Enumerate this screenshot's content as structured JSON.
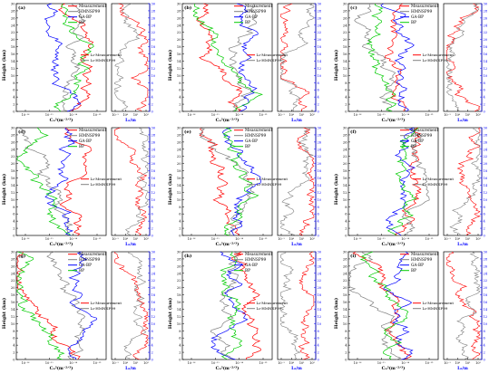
{
  "colors": {
    "measurement": "#ff0000",
    "hmnsp99": "#808080",
    "gabp": "#0000ff",
    "bp": "#00cc00",
    "right_axis": "#0000ff"
  },
  "legend_top": [
    "Measurement",
    "HMNSP99",
    "GA-BP",
    "BP"
  ],
  "legend_lo": [
    "L₀-Measurement",
    "L₀-HMNSP99"
  ],
  "labels": {
    "ylabel": "Height (km)",
    "xlabel_cn": "Cₙ²(m⁻²ᐟ³)",
    "xlabel_lo": "L₀/m"
  },
  "chart_data": {
    "type": "line",
    "y_range": [
      0,
      30
    ],
    "y_ticks": [
      0,
      2,
      4,
      6,
      8,
      10,
      12,
      14,
      16,
      18,
      20,
      22,
      24,
      26,
      28,
      30
    ],
    "x_left_ticks": [
      "10⁻¹⁶",
      "10⁻¹⁵",
      "10⁻¹⁴",
      "10⁻¹³"
    ],
    "x_right_ticks": [
      "10⁻¹",
      "10⁰",
      "10¹",
      "10²"
    ],
    "panels": [
      {
        "label": "(a)",
        "cn2_series": [
          "Measurement",
          "HMNSP99",
          "GA-BP",
          "BP"
        ],
        "l0_series": [
          "L₀-Measurement",
          "L₀-HMNSP99"
        ]
      },
      {
        "label": "(b)",
        "cn2_series": [
          "Measurement",
          "HMNSP99",
          "GA-BP",
          "BP"
        ],
        "l0_series": [
          "L₀-Measurement",
          "L₀-HMNSP99"
        ]
      },
      {
        "label": "(c)",
        "cn2_series": [
          "Measurement",
          "HMNSP99",
          "GA-BP",
          "BP"
        ],
        "l0_series": [
          "L₀-Measurement",
          "L₀-HMNSP99"
        ]
      },
      {
        "label": "(d)",
        "cn2_series": [
          "Measurement",
          "HMNSP99",
          "GA-BP",
          "BP"
        ],
        "l0_series": [
          "L₀-Measurement",
          "L₀-HMNSP99"
        ]
      },
      {
        "label": "(e)",
        "cn2_series": [
          "Measurement",
          "HMNSP99",
          "GA-BP",
          "BP"
        ],
        "l0_series": [
          "L₀-Measurement",
          "L₀-HMNSP99"
        ]
      },
      {
        "label": "(f)",
        "cn2_series": [
          "Measurement",
          "HMNSP99",
          "GA-BP",
          "BP"
        ],
        "l0_series": [
          "L₀-Measurement",
          "L₀-HMNSP99"
        ]
      },
      {
        "label": "(g)",
        "cn2_series": [
          "Measurement",
          "HMNSP99",
          "GA-BP",
          "BP"
        ],
        "l0_series": [
          "L₀-Measurement",
          "L₀-HMNSP99"
        ]
      },
      {
        "label": "(h)",
        "cn2_series": [
          "Measurement",
          "HMNSP99",
          "GA-BP",
          "BP"
        ],
        "l0_series": [
          "L₀-Measurement",
          "L₀-HMNSP99"
        ]
      },
      {
        "label": "(i)",
        "cn2_series": [
          "Measurement",
          "HMNSP99",
          "GA-BP",
          "BP"
        ],
        "l0_series": [
          "L₀-Measurement",
          "L₀-HMNSP99"
        ]
      }
    ]
  }
}
